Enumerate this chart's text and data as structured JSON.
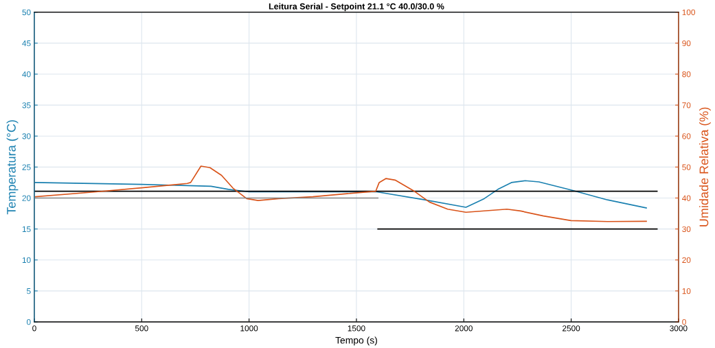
{
  "chart_data": {
    "type": "line",
    "title": "Leitura Serial - Setpoint 21.1 °C 40.0/30.0 %",
    "xlabel": "Tempo (s)",
    "ylabel": "Temperatura (°C)",
    "y2label": "Umidade Relativa (%)",
    "xlim": [
      0,
      3000
    ],
    "xticks": [
      0,
      500,
      1000,
      1500,
      2000,
      2500,
      3000
    ],
    "ylim": [
      0,
      50
    ],
    "yticks": [
      0,
      5,
      10,
      15,
      20,
      25,
      30,
      35,
      40,
      45,
      50
    ],
    "y2lim": [
      0,
      100
    ],
    "y2ticks": [
      0,
      10,
      20,
      30,
      40,
      50,
      60,
      70,
      80,
      90,
      100
    ],
    "grid": true,
    "series": [
      {
        "color": "#1a80b0",
        "x": [
          5,
          500,
          712,
          823,
          904,
          1000,
          1595,
          1818,
          2010,
          2095,
          2159,
          2222,
          2286,
          2350,
          2499,
          2669,
          2850
        ],
        "values": [
          22.5,
          22.2,
          22.0,
          21.9,
          21.4,
          21.0,
          21.0,
          19.7,
          18.5,
          19.9,
          21.4,
          22.5,
          22.8,
          22.6,
          21.3,
          19.7,
          18.4
        ]
      },
      {
        "color": "#d95319",
        "axis": "y2",
        "x": [
          5,
          287,
          500,
          712,
          728,
          776,
          818,
          872,
          925,
          989,
          1042,
          1138,
          1297,
          1457,
          1590,
          1606,
          1638,
          1680,
          1765,
          1840,
          1925,
          2010,
          2201,
          2265,
          2371,
          2499,
          2669,
          2850
        ],
        "values": [
          40.4,
          42.0,
          43.3,
          44.7,
          45.0,
          50.3,
          49.8,
          47.3,
          43.2,
          39.8,
          39.2,
          39.8,
          40.4,
          41.4,
          42.2,
          45.0,
          46.3,
          45.8,
          42.4,
          38.7,
          36.4,
          35.4,
          36.4,
          35.8,
          34.2,
          32.7,
          32.4,
          32.5
        ]
      },
      {
        "color": "#000000",
        "x": [
          0,
          2900
        ],
        "values": [
          21.1,
          21.1
        ]
      },
      {
        "color": "#808080",
        "axis": "y2",
        "x": [
          0,
          1600
        ],
        "values": [
          40,
          40
        ]
      },
      {
        "color": "#000000",
        "axis": "y2",
        "x": [
          1600,
          2900
        ],
        "values": [
          30,
          30
        ]
      }
    ]
  }
}
